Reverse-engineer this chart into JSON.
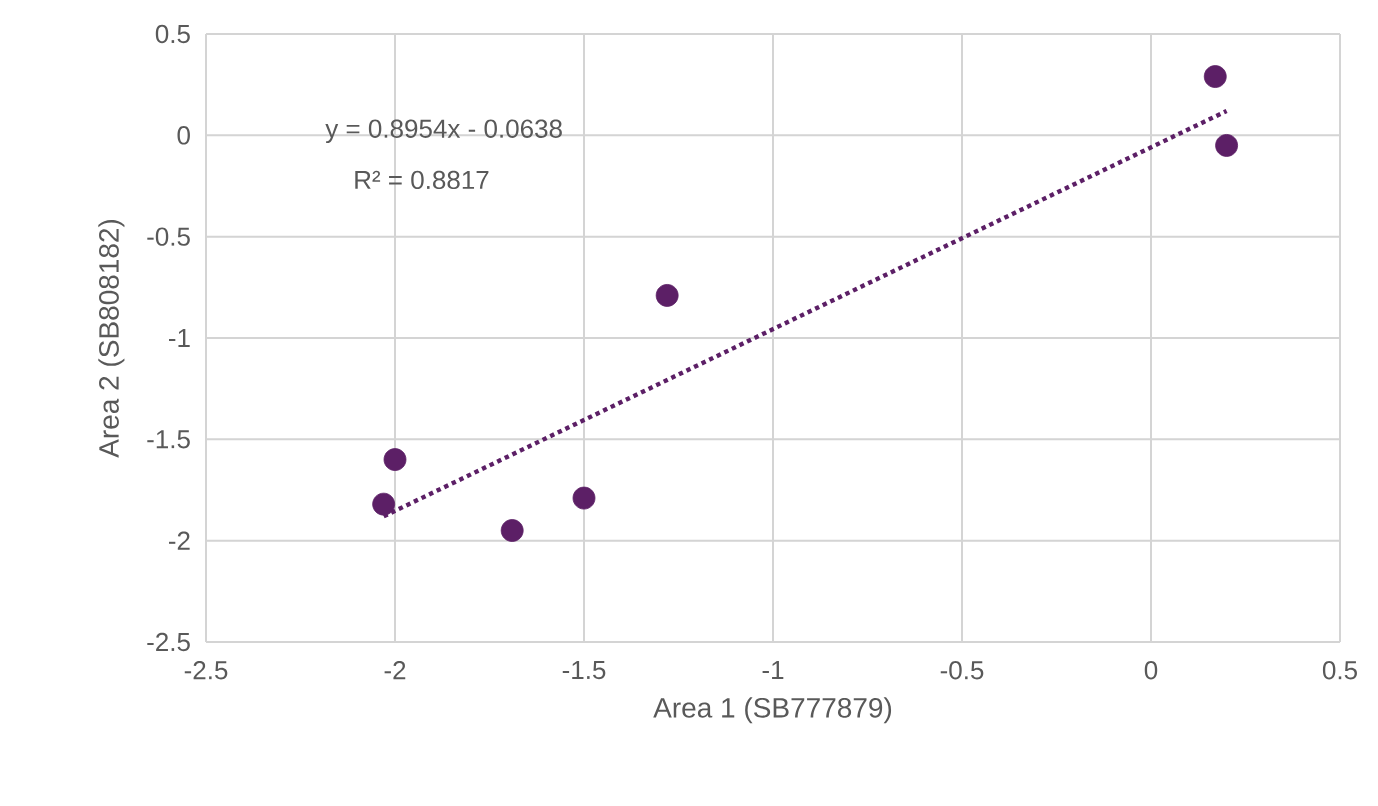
{
  "chart_data": {
    "type": "scatter",
    "xlabel": "Area 1 (SB777879)",
    "ylabel": "Area 2 (SB808182)",
    "xlim": [
      -2.5,
      0.5
    ],
    "xticks": [
      -2.5,
      -2,
      -1.5,
      -1,
      -0.5,
      0,
      0.5
    ],
    "ylim": [
      -2.5,
      0.5
    ],
    "yticks": [
      -2.5,
      -2,
      -1.5,
      -1,
      -0.5,
      0,
      0.5
    ],
    "grid": true,
    "annotations": [
      "y = 0.8954x - 0.0638",
      "R² = 0.8817"
    ],
    "series": [
      {
        "type": "scatter",
        "color": "#5c1f66",
        "marker": "circle",
        "x": [
          -2.03,
          -2.0,
          -1.69,
          -1.5,
          -1.28,
          0.17,
          0.2
        ],
        "values": [
          -1.82,
          -1.6,
          -1.95,
          -1.79,
          -0.79,
          0.29,
          -0.05
        ]
      },
      {
        "type": "line",
        "color": "#5c1f66",
        "marker": "none",
        "line_style": "dotted",
        "x": [
          -2.03,
          0.2
        ],
        "values": [
          -1.88,
          0.12
        ]
      }
    ]
  }
}
